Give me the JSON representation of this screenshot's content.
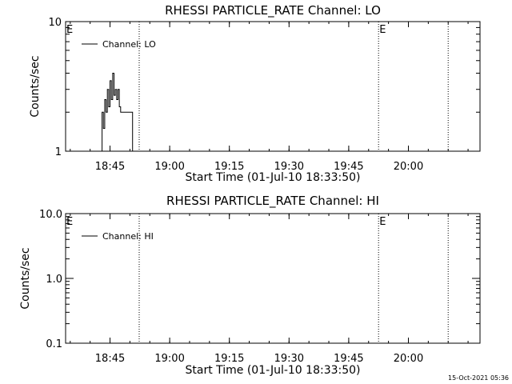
{
  "chart_data": [
    {
      "type": "line",
      "title": "RHESSI PARTICLE_RATE Channel: LO",
      "xlabel": "Start Time (01-Jul-10 18:33:50)",
      "ylabel": "Counts/sec",
      "yscale": "log",
      "ylim": [
        1,
        10
      ],
      "y_tick_labels": [
        "1",
        "10"
      ],
      "xlim": [
        "18:33:50",
        "20:18:00"
      ],
      "x_tick_labels": [
        "18:45",
        "19:00",
        "19:15",
        "19:30",
        "19:45",
        "20:00"
      ],
      "legend": {
        "position": "top-left",
        "entries": [
          "Channel: LO"
        ]
      },
      "markers": [
        {
          "time": "18:52:20",
          "label": ""
        },
        {
          "time": "19:52:30",
          "label": "E"
        },
        {
          "time": "20:10:00",
          "label": ""
        }
      ],
      "left_marker_label": "E",
      "series": [
        {
          "name": "Channel: LO",
          "x": [
            "18:42:40",
            "18:43:00",
            "18:43:20",
            "18:43:40",
            "18:44:00",
            "18:44:20",
            "18:44:40",
            "18:45:00",
            "18:45:20",
            "18:45:40",
            "18:46:00",
            "18:46:20",
            "18:46:40",
            "18:47:00",
            "18:47:20",
            "18:47:40",
            "18:48:00",
            "18:48:20",
            "18:48:40",
            "18:49:00",
            "18:49:20",
            "18:49:40",
            "18:50:00",
            "18:50:20",
            "18:50:40"
          ],
          "y": [
            1,
            2,
            1.5,
            2.5,
            2,
            3,
            2.2,
            3.5,
            2.5,
            4,
            2.7,
            3,
            2.5,
            3,
            2.2,
            2,
            2,
            2,
            2,
            2,
            2,
            2,
            2,
            2,
            1
          ]
        }
      ]
    },
    {
      "type": "line",
      "title": "RHESSI PARTICLE_RATE Channel: HI",
      "xlabel": "Start Time (01-Jul-10 18:33:50)",
      "ylabel": "Counts/sec",
      "yscale": "log",
      "ylim": [
        0.1,
        10
      ],
      "y_tick_labels": [
        "0.1",
        "1.0",
        "10.0"
      ],
      "xlim": [
        "18:33:50",
        "20:18:00"
      ],
      "x_tick_labels": [
        "18:45",
        "19:00",
        "19:15",
        "19:30",
        "19:45",
        "20:00"
      ],
      "legend": {
        "position": "top-left",
        "entries": [
          "Channel: HI"
        ]
      },
      "markers": [
        {
          "time": "18:52:20",
          "label": ""
        },
        {
          "time": "19:52:30",
          "label": "E"
        },
        {
          "time": "20:10:00",
          "label": ""
        }
      ],
      "left_marker_label": "E",
      "series": [
        {
          "name": "Channel: HI",
          "x": [],
          "y": []
        }
      ]
    }
  ],
  "footer": {
    "timestamp": "15-Oct-2021 05:36"
  }
}
